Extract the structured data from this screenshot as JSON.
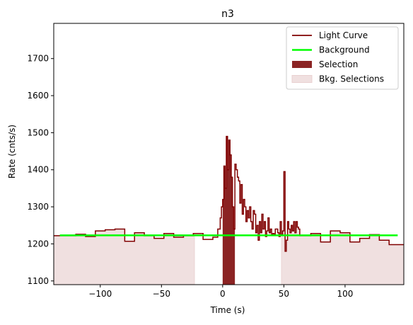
{
  "chart_data": {
    "type": "line",
    "title": "n3",
    "xlabel": "Time (s)",
    "ylabel": "Rate (cnts/s)",
    "xlim": [
      -138,
      148
    ],
    "ylim": [
      1090,
      1795
    ],
    "x_ticks": [
      -100,
      -50,
      0,
      50,
      100
    ],
    "x_tick_labels": [
      "−100",
      "−50",
      "0",
      "50",
      "100"
    ],
    "y_ticks": [
      1100,
      1200,
      1300,
      1400,
      1500,
      1600,
      1700
    ],
    "y_tick_labels": [
      "1100",
      "1200",
      "1300",
      "1400",
      "1500",
      "1600",
      "1700"
    ],
    "grid": false,
    "legend_position": "top-right",
    "legend": [
      {
        "label": "Light Curve",
        "kind": "line",
        "color": "#800000"
      },
      {
        "label": "Background",
        "kind": "line",
        "color": "#00ff00"
      },
      {
        "label": "Selection",
        "kind": "patch",
        "color": "#8b2323"
      },
      {
        "label": "Bkg. Selections",
        "kind": "patch",
        "color": "#f0e0e0"
      }
    ],
    "series": [
      {
        "name": "Light Curve",
        "color": "#800000",
        "step": "post",
        "edges": [
          -138,
          -128,
          -120,
          -112,
          -104,
          -96,
          -88,
          -80,
          -72,
          -64,
          -56,
          -48,
          -40,
          -32,
          -24,
          -16,
          -8,
          -4,
          -2,
          -1,
          0,
          1,
          2,
          3,
          4,
          5,
          6,
          7,
          8,
          9,
          10,
          11,
          12,
          13,
          14,
          15,
          16,
          17,
          18,
          19,
          20,
          21,
          22,
          23,
          24,
          25,
          26,
          27,
          28,
          29,
          30,
          31,
          32,
          33,
          34,
          35,
          36,
          37,
          38,
          39,
          40,
          41,
          42,
          43,
          44,
          45,
          46,
          47,
          48,
          49,
          50,
          51,
          52,
          53,
          54,
          55,
          56,
          57,
          58,
          59,
          60,
          61,
          62,
          63,
          64,
          72,
          80,
          88,
          96,
          104,
          112,
          120,
          128,
          136,
          148
        ],
        "values": [
          1222,
          1222,
          1226,
          1220,
          1235,
          1238,
          1240,
          1207,
          1230,
          1222,
          1215,
          1228,
          1218,
          1222,
          1228,
          1212,
          1218,
          1240,
          1270,
          1300,
          1320,
          1410,
          1350,
          1490,
          1400,
          1480,
          1440,
          1380,
          1300,
          1240,
          1415,
          1400,
          1380,
          1370,
          1310,
          1360,
          1280,
          1320,
          1300,
          1260,
          1290,
          1270,
          1300,
          1260,
          1240,
          1290,
          1280,
          1230,
          1250,
          1210,
          1260,
          1230,
          1280,
          1240,
          1260,
          1220,
          1235,
          1270,
          1230,
          1240,
          1225,
          1228,
          1225,
          1240,
          1240,
          1230,
          1220,
          1260,
          1225,
          1235,
          1395,
          1180,
          1210,
          1260,
          1240,
          1230,
          1250,
          1235,
          1260,
          1230,
          1260,
          1245,
          1240,
          1222,
          1222,
          1228,
          1205,
          1235,
          1230,
          1205,
          1215,
          1225,
          1210,
          1198,
          1198
        ]
      },
      {
        "name": "Background",
        "color": "#00ff00",
        "x": [
          -133,
          143
        ],
        "y": [
          1223,
          1223
        ]
      }
    ],
    "selection": {
      "x_start": 0,
      "x_end": 10,
      "color": "#8b2323"
    },
    "bkg_selections": [
      {
        "x_start": -138,
        "x_end": -23
      },
      {
        "x_start": 48,
        "x_end": 148
      }
    ]
  }
}
